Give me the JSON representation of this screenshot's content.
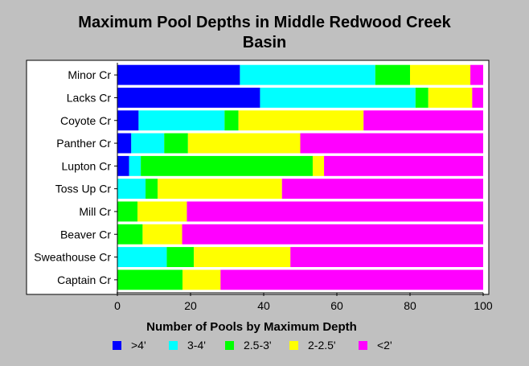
{
  "title_line1": "Maximum Pool Depths in Middle Redwood Creek",
  "title_line2": "Basin",
  "legend_title": "Number of Pools by Maximum Depth",
  "chart_data": {
    "type": "bar",
    "orientation": "horizontal",
    "stacked": true,
    "title": "Maximum Pool Depths in Middle Redwood Creek Basin",
    "xlabel": "",
    "ylabel": "",
    "xlim": [
      0,
      100
    ],
    "xticks": [
      0,
      20,
      40,
      60,
      80,
      100
    ],
    "grid": false,
    "legend_title": "Number of Pools by Maximum Depth",
    "legend_position": "bottom",
    "categories": [
      "Minor Cr",
      "Lacks Cr",
      "Coyote Cr",
      "Panther Cr",
      "Lupton Cr",
      "Toss Up Cr",
      "Mill Cr",
      "Beaver Cr",
      "Sweathouse Cr",
      "Captain Cr"
    ],
    "series": [
      {
        "name": ">4'",
        "color": "#0000ff",
        "values": [
          33.5,
          39,
          5.8,
          3.8,
          3.2,
          0,
          0,
          0,
          0,
          0
        ]
      },
      {
        "name": "3-4'",
        "color": "#00ffff",
        "values": [
          37,
          42.5,
          23.5,
          9,
          3.2,
          7.7,
          0,
          0,
          13.5,
          0
        ]
      },
      {
        "name": "2.5-3'",
        "color": "#00ff00",
        "values": [
          9.5,
          3.5,
          3.8,
          6.5,
          47,
          3.3,
          5.5,
          6.9,
          7.4,
          17.8
        ]
      },
      {
        "name": "2-2.5'",
        "color": "#ffff00",
        "values": [
          16.5,
          12,
          34.2,
          30.7,
          3.1,
          34,
          13.5,
          10.8,
          26.4,
          10.4
        ]
      },
      {
        "name": "<2'",
        "color": "#ff00ff",
        "values": [
          3.5,
          3,
          32.7,
          50,
          43.5,
          55,
          81,
          82.3,
          52.7,
          71.8
        ]
      }
    ]
  }
}
